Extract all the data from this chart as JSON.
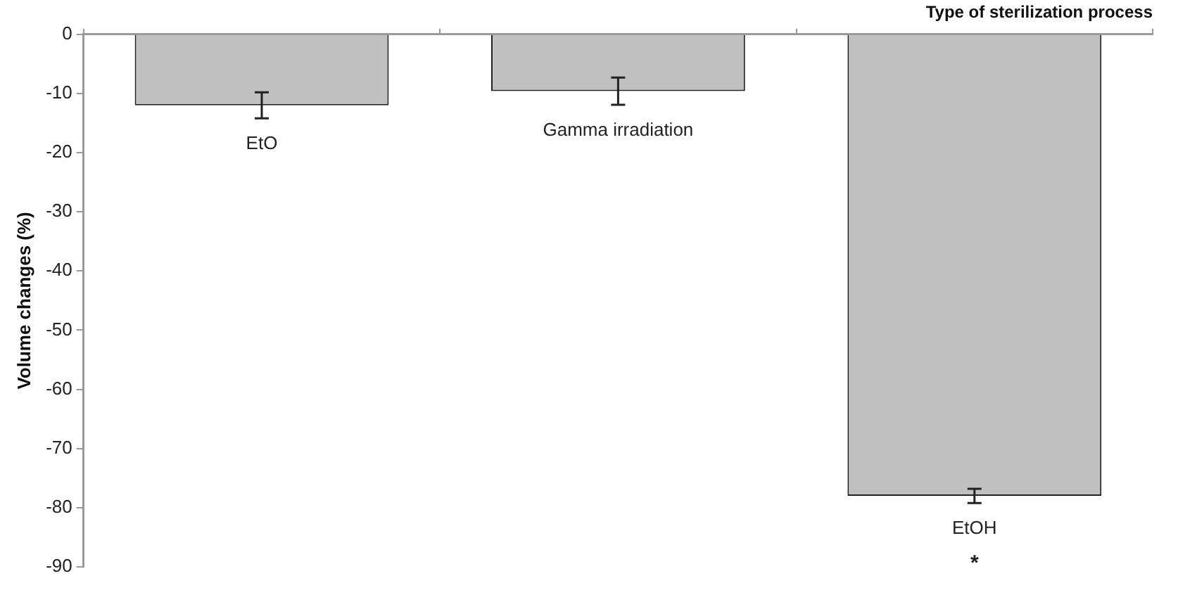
{
  "chart_data": {
    "type": "bar",
    "xlabel": "Type of sterilization process",
    "ylabel": "Volume changes (%)",
    "categories": [
      "EtO",
      "Gamma irradiation",
      "EtOH"
    ],
    "values": [
      -12,
      -9.6,
      -78
    ],
    "errors": [
      2.2,
      2.3,
      1.2
    ],
    "color": "#c0c0c0",
    "ylim": [
      -90,
      0
    ],
    "yticks": [
      0,
      -10,
      -20,
      -30,
      -40,
      -50,
      -60,
      -70,
      -80,
      -90
    ],
    "grid": false,
    "legend": false,
    "annotations": [
      "*"
    ]
  }
}
